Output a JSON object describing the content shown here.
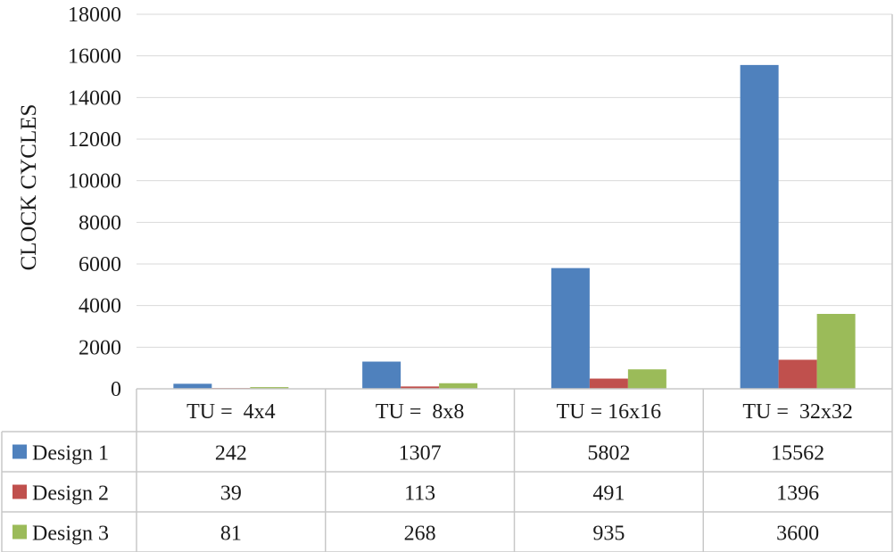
{
  "chart_data": {
    "type": "bar",
    "ylabel": "CLOCK CYCLES",
    "xlabel": "",
    "ylim": [
      0,
      18000
    ],
    "yticks": [
      0,
      2000,
      4000,
      6000,
      8000,
      10000,
      12000,
      14000,
      16000,
      18000
    ],
    "grid": true,
    "legend": "data-table",
    "categories": [
      "TU =  4x4",
      "TU =  8x8",
      "TU = 16x16",
      "TU =  32x32"
    ],
    "series": [
      {
        "name": "Design 1",
        "color": "#4f81bd",
        "values": [
          242,
          1307,
          5802,
          15562
        ]
      },
      {
        "name": "Design 2",
        "color": "#c0504d",
        "values": [
          39,
          113,
          491,
          1396
        ]
      },
      {
        "name": "Design 3",
        "color": "#9bbb59",
        "values": [
          81,
          268,
          935,
          3600
        ]
      }
    ]
  }
}
